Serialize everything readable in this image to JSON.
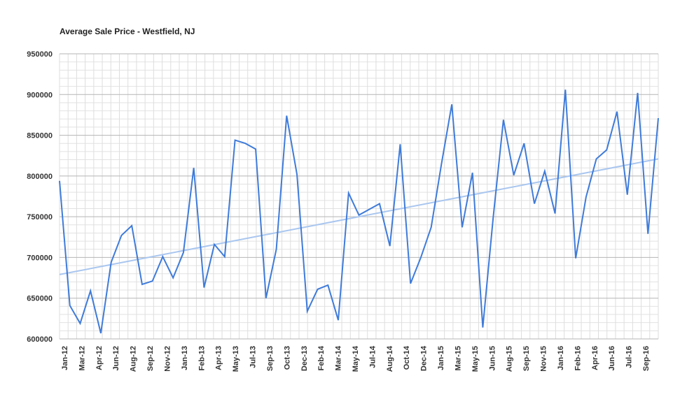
{
  "chart_data": {
    "type": "line",
    "title": "Average Sale Price - Westfield, NJ",
    "xlabel": "",
    "ylabel": "",
    "ylim": [
      600000,
      950000
    ],
    "yticks": [
      "950000",
      "900000",
      "850000",
      "800000",
      "750000",
      "700000",
      "650000",
      "600000"
    ],
    "yticks_values": [
      950000,
      900000,
      850000,
      800000,
      750000,
      700000,
      650000,
      600000
    ],
    "xtick_labels": [
      "Jan-12",
      "Mar-12",
      "Apr-12",
      "Jun-12",
      "Aug-12",
      "Sep-12",
      "Nov-12",
      "Jan-13",
      "Feb-13",
      "Apr-13",
      "May-13",
      "Jul-13",
      "Sep-13",
      "Oct-13",
      "Dec-13",
      "Feb-14",
      "Mar-14",
      "May-14",
      "Jul-14",
      "Aug-14",
      "Oct-14",
      "Dec-14",
      "Jan-15",
      "Mar-15",
      "May-15",
      "Jun-15",
      "Aug-15",
      "Sep-15",
      "Nov-15",
      "Jan-16",
      "Feb-16",
      "Apr-16",
      "Jun-16",
      "Jul-16",
      "Sep-16"
    ],
    "x": [
      "Jan-12",
      "Feb-12",
      "Mar-12",
      "Apr-12",
      "May-12",
      "Jun-12",
      "Jul-12",
      "Aug-12",
      "Sep-12",
      "Oct-12",
      "Nov-12",
      "Dec-12",
      "Jan-13",
      "Feb-13",
      "Mar-13",
      "Apr-13",
      "May-13",
      "Jun-13",
      "Jul-13",
      "Aug-13",
      "Sep-13",
      "Oct-13",
      "Nov-13",
      "Dec-13",
      "Jan-14",
      "Feb-14",
      "Mar-14",
      "Apr-14",
      "May-14",
      "Jun-14",
      "Jul-14",
      "Aug-14",
      "Sep-14",
      "Oct-14",
      "Nov-14",
      "Dec-14",
      "Jan-15",
      "Feb-15",
      "Mar-15",
      "Apr-15",
      "May-15",
      "Jun-15",
      "Jul-15",
      "Aug-15",
      "Sep-15",
      "Oct-15",
      "Nov-15",
      "Dec-15",
      "Jan-16",
      "Feb-16",
      "Mar-16",
      "Apr-16",
      "May-16",
      "Jun-16",
      "Jul-16",
      "Aug-16",
      "Sep-16",
      "Oct-16",
      "Nov-16"
    ],
    "series": [
      {
        "values": [
          794000,
          641000,
          619000,
          659000,
          607000,
          694000,
          727000,
          739000,
          667000,
          671000,
          701000,
          675000,
          706000,
          810000,
          663000,
          716000,
          701000,
          844000,
          840000,
          833000,
          650000,
          710000,
          874000,
          802000,
          634000,
          661000,
          666000,
          623000,
          779000,
          752000,
          759000,
          766000,
          714000,
          839000,
          668000,
          700000,
          737000,
          815000,
          888000,
          737000,
          804000,
          614000,
          748000,
          869000,
          801000,
          840000,
          766000,
          806000,
          754000,
          906000,
          699000,
          774000,
          821000,
          832000,
          879000,
          777000,
          902000,
          729000,
          871000
        ],
        "color": "#3f7bd9"
      }
    ],
    "trendline": {
      "type": "linear",
      "start": 679000,
      "end": 821000,
      "color": "#a9c6ef"
    },
    "grid": true,
    "legend": "none"
  }
}
